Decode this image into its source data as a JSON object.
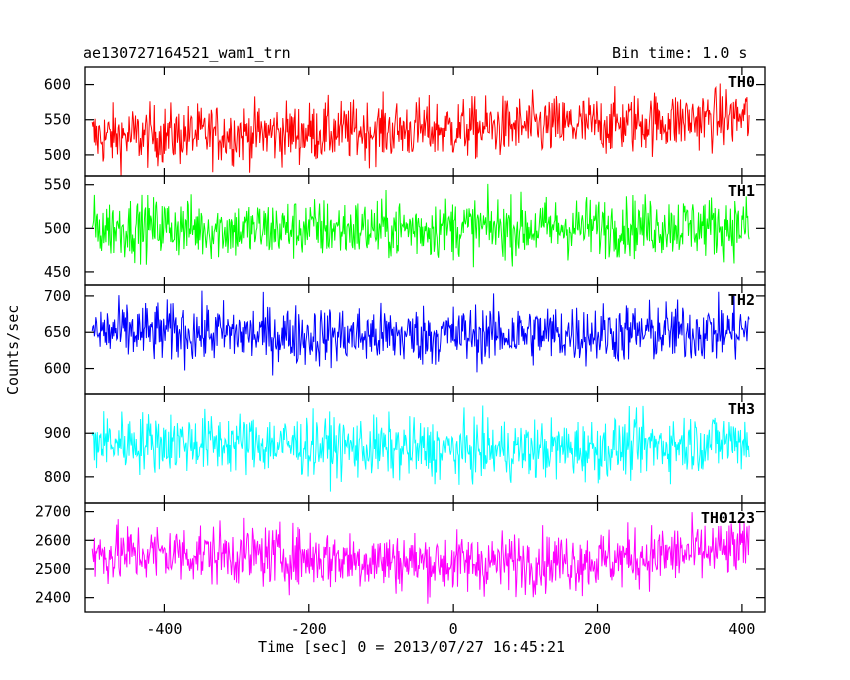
{
  "header": {
    "title": "ae130727164521_wam1_trn",
    "bin_time": "Bin time: 1.0 s"
  },
  "chart_data": {
    "type": "line",
    "xlabel": "Time [sec] 0 = 2013/07/27 16:45:21",
    "ylabel": "Counts/sec",
    "xlim": [
      -510,
      432
    ],
    "xticks": [
      -400,
      -200,
      0,
      200,
      400
    ],
    "x_range": [
      -500,
      410
    ],
    "bin_time_s": 1.0,
    "panels": [
      {
        "name": "TH0",
        "color": "#ff0000",
        "ylim": [
          470,
          625
        ],
        "yticks": [
          500,
          550,
          600
        ],
        "series": [
          {
            "x": [
              -500,
              -400,
              -300,
              -200,
              -100,
              0,
              100,
              200,
              300,
              410
            ],
            "y": [
              525,
              528,
              530,
              532,
              535,
              537,
              540,
              543,
              548,
              555
            ]
          }
        ]
      },
      {
        "name": "TH1",
        "color": "#00ff00",
        "ylim": [
          435,
          560
        ],
        "yticks": [
          450,
          500,
          550
        ],
        "series": [
          {
            "x": [
              -500,
              -400,
              -300,
              -200,
              -100,
              0,
              100,
              200,
              300,
              410
            ],
            "y": [
              500,
              502,
              498,
              500,
              499,
              501,
              500,
              502,
              503,
              502
            ]
          }
        ]
      },
      {
        "name": "TH2",
        "color": "#0000ff",
        "ylim": [
          565,
          715
        ],
        "yticks": [
          600,
          650,
          700
        ],
        "series": [
          {
            "x": [
              -500,
              -400,
              -300,
              -200,
              -100,
              0,
              100,
              200,
              300,
              410
            ],
            "y": [
              650,
              650,
              648,
              645,
              645,
              646,
              648,
              648,
              650,
              652
            ]
          }
        ]
      },
      {
        "name": "TH3",
        "color": "#00ffff",
        "ylim": [
          740,
          990
        ],
        "yticks": [
          800,
          900
        ],
        "series": [
          {
            "x": [
              -500,
              -400,
              -300,
              -200,
              -100,
              0,
              100,
              200,
              300,
              410
            ],
            "y": [
              880,
              880,
              878,
              872,
              865,
              860,
              862,
              865,
              875,
              885
            ]
          }
        ]
      },
      {
        "name": "TH0123",
        "color": "#ff00ff",
        "ylim": [
          2350,
          2730
        ],
        "yticks": [
          2400,
          2500,
          2600,
          2700
        ],
        "series": [
          {
            "x": [
              -500,
              -400,
              -300,
              -200,
              -100,
              0,
              100,
              200,
              300,
              410
            ],
            "y": [
              2550,
              2555,
              2550,
              2540,
              2530,
              2520,
              2525,
              2530,
              2550,
              2570
            ]
          }
        ]
      }
    ]
  }
}
